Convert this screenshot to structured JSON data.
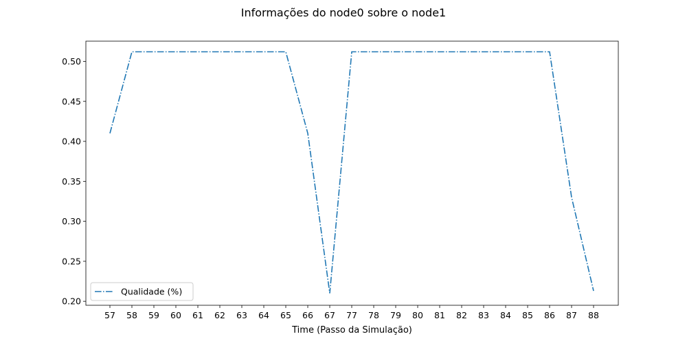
{
  "chart_data": {
    "type": "line",
    "title": "Informações do node0 sobre o node1",
    "xlabel": "Time (Passo da Simulação)",
    "ylabel": "",
    "categories": [
      "57",
      "58",
      "59",
      "60",
      "61",
      "62",
      "63",
      "64",
      "65",
      "66",
      "67",
      "77",
      "78",
      "79",
      "80",
      "81",
      "82",
      "83",
      "84",
      "85",
      "86",
      "87",
      "88"
    ],
    "series": [
      {
        "name": "Qualidade (%)",
        "color": "#1f77b4",
        "line_style": "dashdot",
        "values": [
          0.41,
          0.512,
          0.512,
          0.512,
          0.512,
          0.512,
          0.512,
          0.512,
          0.512,
          0.41,
          0.21,
          0.512,
          0.512,
          0.512,
          0.512,
          0.512,
          0.512,
          0.512,
          0.512,
          0.512,
          0.512,
          0.33,
          0.213
        ]
      }
    ],
    "ylim": [
      0.195,
      0.5253
    ],
    "yticks": [
      0.2,
      0.25,
      0.3,
      0.35,
      0.4,
      0.45,
      0.5
    ],
    "ytick_labels": [
      "0.20",
      "0.25",
      "0.30",
      "0.35",
      "0.40",
      "0.45",
      "0.50"
    ],
    "grid": false,
    "legend_position": "lower-left"
  }
}
